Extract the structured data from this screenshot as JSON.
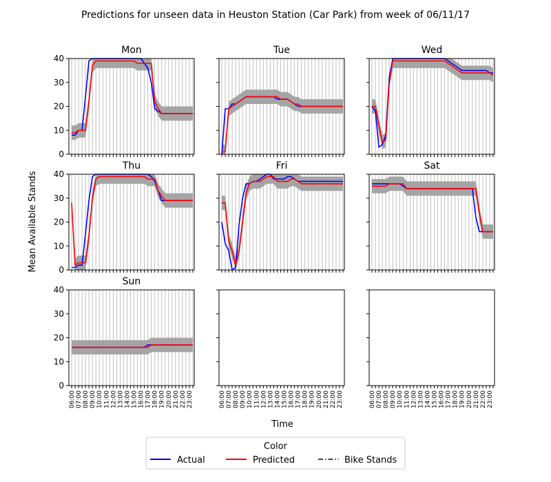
{
  "title": "Predictions for unseen data in Heuston Station (Car Park) from week of 06/11/17",
  "xlabel": "Time",
  "ylabel": "Mean Available Stands",
  "legend": {
    "title": "Color",
    "entries": [
      {
        "label": "Actual",
        "color": "#0000ff",
        "style": "solid"
      },
      {
        "label": "Predicted",
        "color": "#ff0000",
        "style": "solid"
      },
      {
        "label": "Bike Stands",
        "color": "#000000",
        "style": "dashdot"
      }
    ]
  },
  "colors": {
    "actual": "#0000ff",
    "predicted": "#ff0000",
    "band": "#a0a0a0",
    "grid": "#b0b0b0"
  },
  "chart_data": {
    "type": "line",
    "x": [
      "06:00",
      "06:30",
      "07:00",
      "07:30",
      "08:00",
      "08:30",
      "09:00",
      "09:30",
      "10:00",
      "10:30",
      "11:00",
      "11:30",
      "12:00",
      "12:30",
      "13:00",
      "13:30",
      "14:00",
      "14:30",
      "15:00",
      "15:30",
      "16:00",
      "16:30",
      "17:00",
      "17:30",
      "18:00",
      "18:30",
      "19:00",
      "19:30",
      "20:00",
      "20:30",
      "21:00",
      "21:30",
      "22:00",
      "22:30",
      "23:00",
      "23:30"
    ],
    "xticks": [
      "06:00",
      "07:00",
      "08:00",
      "09:00",
      "10:00",
      "11:00",
      "12:00",
      "13:00",
      "14:00",
      "15:00",
      "16:00",
      "17:00",
      "18:00",
      "19:00",
      "20:00",
      "21:00",
      "22:00",
      "23:00"
    ],
    "yticks": [
      0,
      10,
      20,
      30,
      40
    ],
    "ylim": [
      0,
      40
    ],
    "band": "shaded range around the predicted line",
    "panels": [
      {
        "name": "Mon",
        "actual": [
          8,
          8,
          10,
          10,
          24,
          39,
          40,
          40,
          40,
          40,
          40,
          40,
          40,
          40,
          40,
          40,
          40,
          40,
          40,
          40,
          40,
          38,
          36,
          30,
          19,
          18,
          17,
          17,
          17,
          17,
          17,
          17,
          17,
          17,
          17,
          17
        ],
        "predicted": [
          9,
          9,
          10,
          10,
          10,
          22,
          37,
          39,
          39,
          39,
          39,
          39,
          39,
          39,
          39,
          39,
          39,
          39,
          39,
          38,
          38,
          38,
          38,
          38,
          22,
          19,
          17,
          17,
          17,
          17,
          17,
          17,
          17,
          17,
          17,
          17
        ],
        "band": [
          3,
          3,
          3,
          3,
          3,
          3,
          3,
          3,
          3,
          3,
          3,
          3,
          3,
          3,
          3,
          3,
          3,
          3,
          3,
          3,
          3,
          3,
          3,
          3,
          3,
          3,
          3,
          3,
          3,
          3,
          3,
          3,
          3,
          3,
          3,
          3
        ]
      },
      {
        "name": "Tue",
        "actual": [
          0,
          19,
          19,
          21,
          21,
          22,
          23,
          24,
          24,
          24,
          24,
          24,
          24,
          24,
          24,
          24,
          23,
          23,
          23,
          23,
          22,
          21,
          20,
          20,
          20,
          20,
          20,
          20,
          20,
          20,
          20,
          20,
          20,
          20,
          20,
          20
        ],
        "predicted": [
          1,
          1,
          19,
          20,
          21,
          22,
          23,
          24,
          24,
          24,
          24,
          24,
          24,
          24,
          24,
          24,
          24,
          23,
          23,
          23,
          22,
          21,
          21,
          20,
          20,
          20,
          20,
          20,
          20,
          20,
          20,
          20,
          20,
          20,
          20,
          20
        ],
        "band": [
          3,
          3,
          3,
          3,
          3,
          3,
          3,
          3,
          3,
          3,
          3,
          3,
          3,
          3,
          3,
          3,
          3,
          3,
          3,
          3,
          3,
          3,
          3,
          3,
          3,
          3,
          3,
          3,
          3,
          3,
          3,
          3,
          3,
          3,
          3,
          3
        ]
      },
      {
        "name": "Wed",
        "actual": [
          20,
          18,
          3,
          4,
          8,
          32,
          40,
          40,
          40,
          40,
          40,
          40,
          40,
          40,
          40,
          40,
          40,
          40,
          40,
          40,
          40,
          40,
          39,
          38,
          37,
          36,
          35,
          35,
          35,
          35,
          35,
          35,
          35,
          35,
          34,
          34
        ],
        "predicted": [
          20,
          20,
          12,
          5,
          6,
          30,
          39,
          39,
          39,
          39,
          39,
          39,
          39,
          39,
          39,
          39,
          39,
          39,
          39,
          39,
          39,
          39,
          38,
          37,
          36,
          35,
          34,
          34,
          34,
          34,
          34,
          34,
          34,
          34,
          34,
          33
        ],
        "band": [
          3,
          3,
          3,
          3,
          3,
          3,
          3,
          3,
          3,
          3,
          3,
          3,
          3,
          3,
          3,
          3,
          3,
          3,
          3,
          3,
          3,
          3,
          3,
          3,
          3,
          3,
          3,
          3,
          3,
          3,
          3,
          3,
          3,
          3,
          3,
          3
        ]
      },
      {
        "name": "Thu",
        "actual": [
          1,
          1,
          2,
          2,
          15,
          29,
          39,
          40,
          40,
          40,
          40,
          40,
          40,
          40,
          40,
          40,
          40,
          40,
          40,
          40,
          40,
          40,
          40,
          39,
          37,
          33,
          29,
          29,
          29,
          29,
          29,
          29,
          29,
          29,
          29,
          29
        ],
        "predicted": [
          28,
          2,
          3,
          3,
          3,
          14,
          30,
          38,
          39,
          39,
          39,
          39,
          39,
          39,
          39,
          39,
          39,
          39,
          39,
          39,
          39,
          39,
          38,
          38,
          38,
          33,
          31,
          29,
          29,
          29,
          29,
          29,
          29,
          29,
          29,
          29
        ],
        "band": [
          3,
          3,
          3,
          3,
          3,
          3,
          3,
          3,
          3,
          3,
          3,
          3,
          3,
          3,
          3,
          3,
          3,
          3,
          3,
          3,
          3,
          3,
          3,
          3,
          3,
          3,
          3,
          3,
          3,
          3,
          3,
          3,
          3,
          3,
          3,
          3
        ]
      },
      {
        "name": "Fri",
        "actual": [
          20,
          11,
          8,
          0,
          1,
          19,
          30,
          36,
          36,
          37,
          37,
          38,
          39,
          40,
          40,
          38,
          38,
          38,
          38,
          39,
          39,
          38,
          37,
          37,
          37,
          37,
          37,
          37,
          37,
          37,
          37,
          37,
          37,
          37,
          37,
          37
        ],
        "predicted": [
          28,
          28,
          12,
          8,
          2,
          8,
          20,
          32,
          36,
          37,
          37,
          37,
          38,
          39,
          39,
          39,
          37,
          37,
          37,
          37,
          38,
          38,
          37,
          36,
          36,
          36,
          36,
          36,
          36,
          36,
          36,
          36,
          36,
          36,
          36,
          36
        ],
        "band": [
          3,
          3,
          3,
          3,
          3,
          3,
          3,
          3,
          3,
          3,
          3,
          3,
          3,
          3,
          3,
          3,
          3,
          3,
          3,
          3,
          3,
          3,
          3,
          3,
          3,
          3,
          3,
          3,
          3,
          3,
          3,
          3,
          3,
          3,
          3,
          3
        ]
      },
      {
        "name": "Sat",
        "actual": [
          36,
          36,
          36,
          36,
          36,
          36,
          36,
          36,
          36,
          35,
          34,
          34,
          34,
          34,
          34,
          34,
          34,
          34,
          34,
          34,
          34,
          34,
          34,
          34,
          34,
          34,
          34,
          34,
          34,
          34,
          22,
          16,
          16,
          16,
          16,
          16
        ],
        "predicted": [
          35,
          35,
          35,
          35,
          35,
          36,
          36,
          36,
          36,
          36,
          34,
          34,
          34,
          34,
          34,
          34,
          34,
          34,
          34,
          34,
          34,
          34,
          34,
          34,
          34,
          34,
          34,
          34,
          34,
          34,
          34,
          24,
          16,
          16,
          16,
          16
        ],
        "band": [
          3,
          3,
          3,
          3,
          3,
          3,
          3,
          3,
          3,
          3,
          3,
          3,
          3,
          3,
          3,
          3,
          3,
          3,
          3,
          3,
          3,
          3,
          3,
          3,
          3,
          3,
          3,
          3,
          3,
          3,
          3,
          3,
          3,
          3,
          3,
          3
        ]
      },
      {
        "name": "Sun",
        "actual": [
          16,
          16,
          16,
          16,
          16,
          16,
          16,
          16,
          16,
          16,
          16,
          16,
          16,
          16,
          16,
          16,
          16,
          16,
          16,
          16,
          16,
          16,
          17,
          17,
          17,
          17,
          17,
          17,
          17,
          17,
          17,
          17,
          17,
          17,
          17,
          17
        ],
        "predicted": [
          16,
          16,
          16,
          16,
          16,
          16,
          16,
          16,
          16,
          16,
          16,
          16,
          16,
          16,
          16,
          16,
          16,
          16,
          16,
          16,
          16,
          16,
          16,
          17,
          17,
          17,
          17,
          17,
          17,
          17,
          17,
          17,
          17,
          17,
          17,
          17
        ],
        "band": [
          3,
          3,
          3,
          3,
          3,
          3,
          3,
          3,
          3,
          3,
          3,
          3,
          3,
          3,
          3,
          3,
          3,
          3,
          3,
          3,
          3,
          3,
          3,
          3,
          3,
          3,
          3,
          3,
          3,
          3,
          3,
          3,
          3,
          3,
          3,
          3
        ]
      },
      {
        "name": "",
        "empty": true
      },
      {
        "name": "",
        "empty": true
      }
    ]
  }
}
